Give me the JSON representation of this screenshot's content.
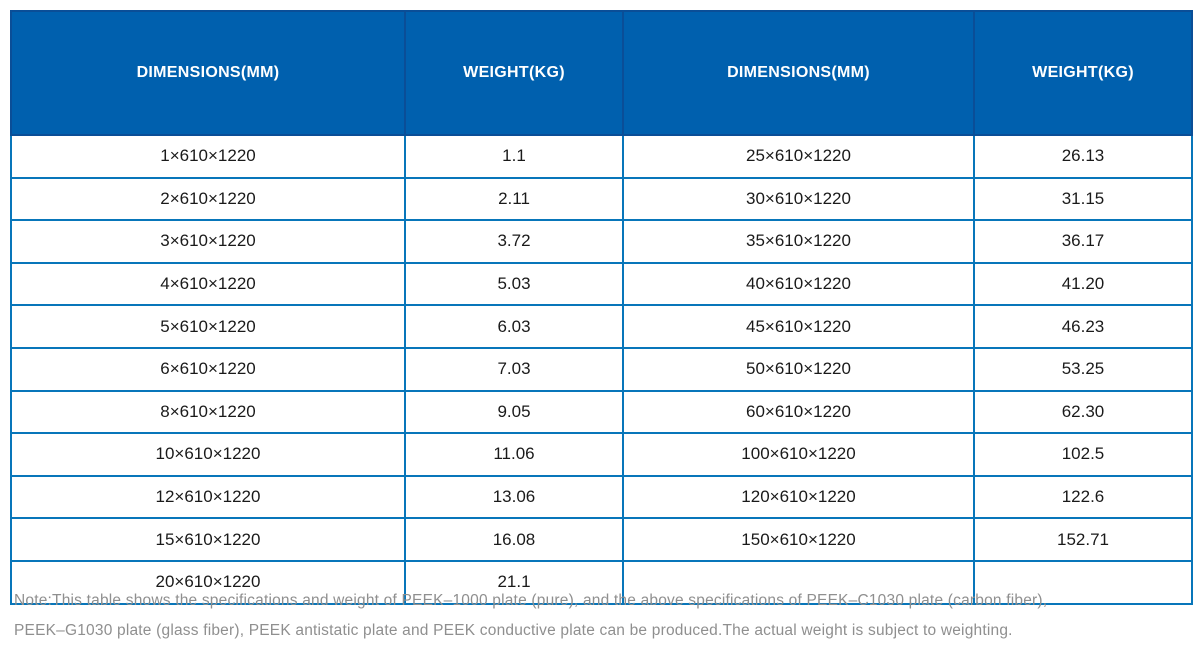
{
  "colors": {
    "header_bg": "#0060ae",
    "header_border": "#0a4e97",
    "header_text": "#ffffff",
    "grid_border": "#0876ba",
    "cell_text": "#1a1a1a",
    "note_text": "#8f8f8f"
  },
  "table": {
    "headers": [
      "DIMENSIONS(MM)",
      "WEIGHT(KG)",
      "DIMENSIONS(MM)",
      "WEIGHT(KG)"
    ],
    "rows": [
      [
        "1×610×1220",
        "1.1",
        "25×610×1220",
        "26.13"
      ],
      [
        "2×610×1220",
        "2.11",
        "30×610×1220",
        "31.15"
      ],
      [
        "3×610×1220",
        "3.72",
        "35×610×1220",
        "36.17"
      ],
      [
        "4×610×1220",
        "5.03",
        "40×610×1220",
        "41.20"
      ],
      [
        "5×610×1220",
        "6.03",
        "45×610×1220",
        "46.23"
      ],
      [
        "6×610×1220",
        "7.03",
        "50×610×1220",
        "53.25"
      ],
      [
        "8×610×1220",
        "9.05",
        "60×610×1220",
        "62.30"
      ],
      [
        "10×610×1220",
        "11.06",
        "100×610×1220",
        "102.5"
      ],
      [
        "12×610×1220",
        "13.06",
        "120×610×1220",
        "122.6"
      ],
      [
        "15×610×1220",
        "16.08",
        "150×610×1220",
        "152.71"
      ],
      [
        "20×610×1220",
        "21.1",
        "",
        ""
      ]
    ]
  },
  "note": {
    "line1": "Note:This table shows the specifications and weight of PEEK–1000 plate (pure), and the above specifications of PEEK–C1030 plate (carbon fiber),",
    "line2": "PEEK–G1030 plate (glass fiber), PEEK antistatic plate and PEEK conductive plate can be produced.The actual weight is subject to weighting."
  }
}
